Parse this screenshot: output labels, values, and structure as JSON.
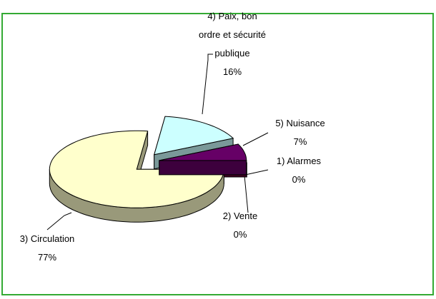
{
  "chart_data": {
    "type": "pie",
    "categories": [
      "1) Alarmes",
      "2) Vente",
      "3) Circulation",
      "4) Paix, bon ordre et sécurité publique",
      "5) Nuisance"
    ],
    "values": [
      0,
      0,
      77,
      16,
      7
    ],
    "value_labels": [
      "0%",
      "0%",
      "77%",
      "16%",
      "7%"
    ],
    "colors": [
      "#660033",
      "#660033",
      "#ffffcc",
      "#ccffff",
      "#660066"
    ],
    "three_d": true,
    "exploded": true
  }
}
